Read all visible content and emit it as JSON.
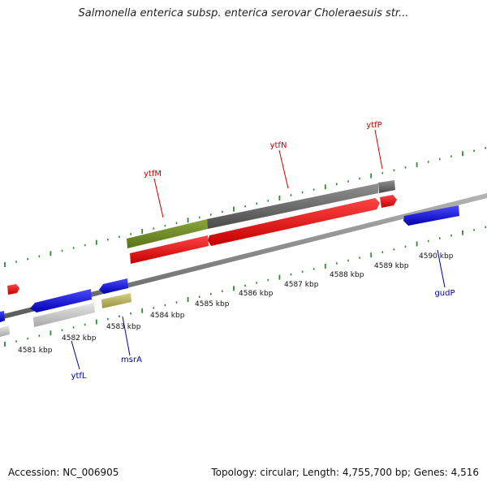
{
  "header": {
    "title": "Salmonella enterica subsp. enterica serovar Choleraesuis str..."
  },
  "footer": {
    "accession": "Accession: NC_006905",
    "summary": "Topology: circular; Length: 4,755,700 bp; Genes: 4,516"
  },
  "colors": {
    "forward_label": "#cc0000",
    "reverse_label": "#000099",
    "tick": "#2e8b2e",
    "backbone": "#8c8c8c"
  },
  "kbp_labels": [
    {
      "text": "4581 kbp",
      "kbp": 4581
    },
    {
      "text": "4582 kbp",
      "kbp": 4582
    },
    {
      "text": "4583 kbp",
      "kbp": 4583
    },
    {
      "text": "4584 kbp",
      "kbp": 4584
    },
    {
      "text": "4585 kbp",
      "kbp": 4585
    },
    {
      "text": "4586 kbp",
      "kbp": 4586
    },
    {
      "text": "4587 kbp",
      "kbp": 4587
    },
    {
      "text": "4588 kbp",
      "kbp": 4588
    },
    {
      "text": "4589 kbp",
      "kbp": 4589
    },
    {
      "text": "4590 kbp",
      "kbp": 4590
    }
  ],
  "gene_labels": [
    {
      "name": "ytfM",
      "strand": "forward"
    },
    {
      "name": "ytfN",
      "strand": "forward"
    },
    {
      "name": "ytfP",
      "strand": "forward"
    },
    {
      "name": "ytfL",
      "strand": "reverse"
    },
    {
      "name": "msrA",
      "strand": "reverse"
    },
    {
      "name": "gudP",
      "strand": "reverse"
    }
  ]
}
